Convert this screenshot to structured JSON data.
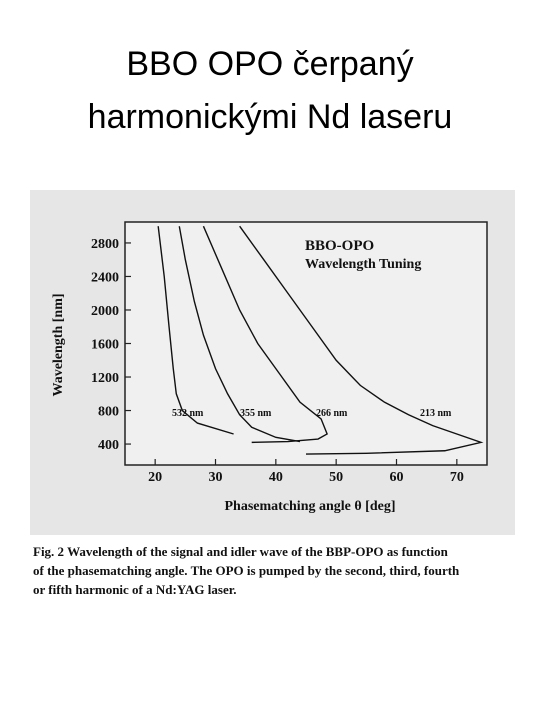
{
  "slide_title": [
    "BBO OPO čerpaný",
    "harmonickými Nd laseru"
  ],
  "chart_data": {
    "type": "line",
    "title": "BBO-OPO",
    "subtitle": "Wavelength Tuning",
    "y_label": "Wavelength [nm]",
    "x_label": "Phasematching angle θ [deg]",
    "xlim": [
      15,
      75
    ],
    "ylim": [
      150,
      3050
    ],
    "xticks": [
      20,
      30,
      40,
      50,
      60,
      70
    ],
    "yticks": [
      400,
      800,
      1200,
      1600,
      2000,
      2400,
      2800
    ],
    "series": [
      {
        "name": "532 nm",
        "color": "#111111",
        "x": [
          20.5,
          21.5,
          22.3,
          23,
          23.5,
          24.5,
          27,
          33
        ],
        "values": [
          3000,
          2400,
          1800,
          1300,
          1000,
          800,
          650,
          520
        ]
      },
      {
        "name": "355 nm",
        "color": "#111111",
        "x": [
          24,
          25,
          26.5,
          28,
          30,
          32,
          34,
          36,
          40,
          44
        ],
        "values": [
          3000,
          2600,
          2100,
          1700,
          1300,
          1000,
          750,
          600,
          480,
          430
        ]
      },
      {
        "name": "266 nm",
        "color": "#111111",
        "x": [
          28,
          31,
          34,
          37,
          41,
          44,
          47.5,
          48.5,
          47,
          42,
          36
        ],
        "values": [
          3000,
          2500,
          2000,
          1600,
          1200,
          900,
          700,
          520,
          460,
          430,
          420
        ]
      },
      {
        "name": "213 nm",
        "color": "#111111",
        "x": [
          34,
          38,
          42,
          46,
          50,
          54,
          58,
          62,
          66,
          70,
          74,
          68,
          55,
          45
        ],
        "values": [
          3000,
          2600,
          2200,
          1800,
          1400,
          1100,
          900,
          750,
          620,
          520,
          420,
          320,
          290,
          280
        ]
      }
    ]
  },
  "caption": [
    "Fig. 2   Wavelength of the signal and idler wave of the BBP-OPO as function",
    "of the phasematching angle. The OPO is pumped by the second, third, fourth",
    "or fifth harmonic of a Nd:YAG laser."
  ]
}
